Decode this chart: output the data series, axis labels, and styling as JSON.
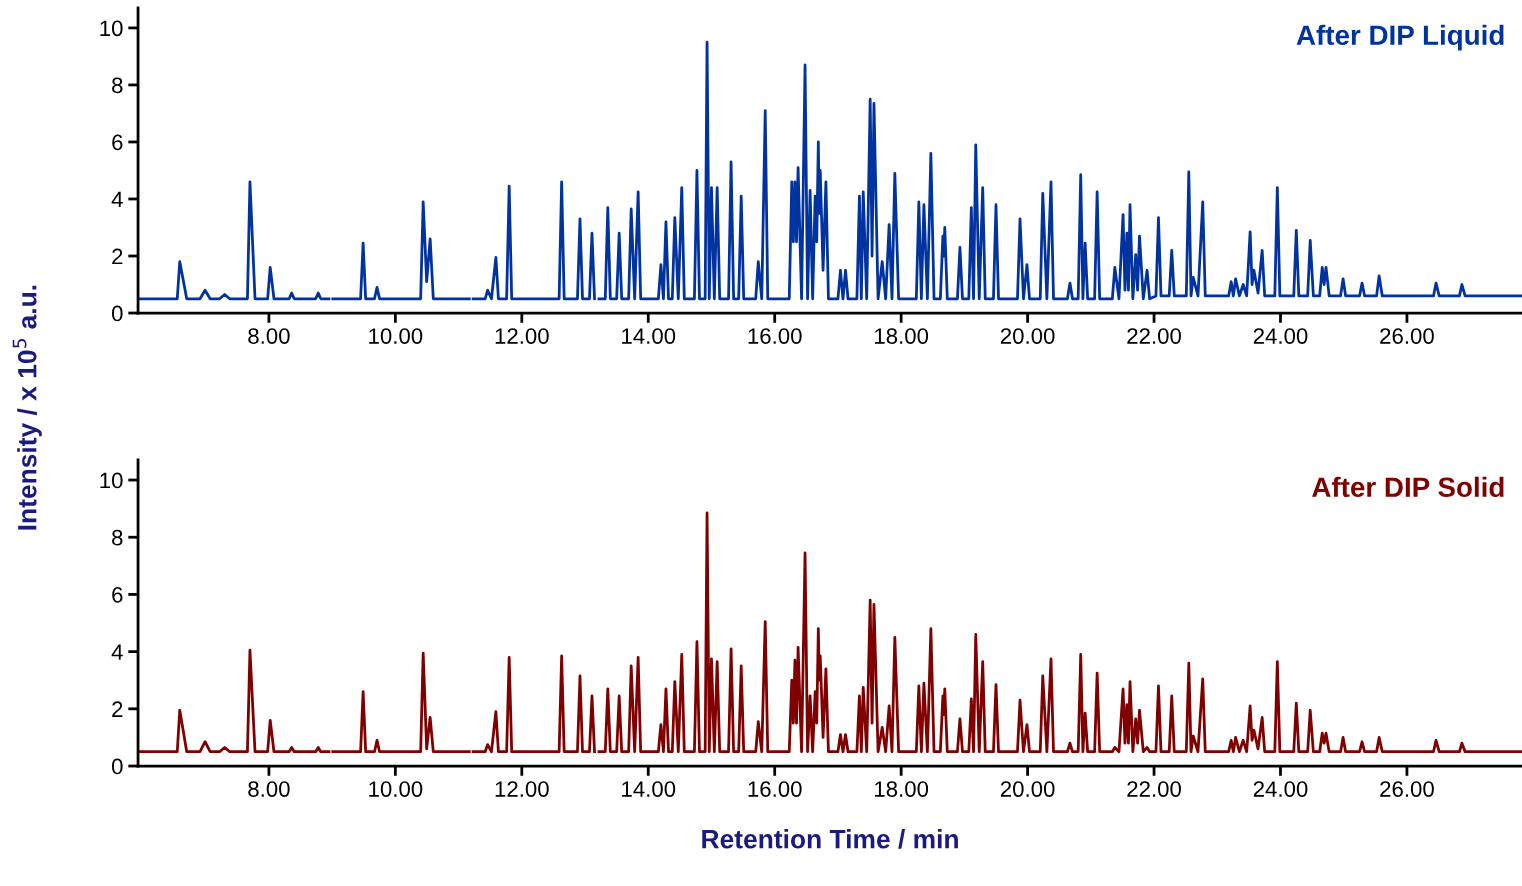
{
  "chart_data": [
    {
      "type": "line",
      "ylabel": "Intensity / x 10$^{5}$ a.u.",
      "legend": "top right",
      "line_style": "solid",
      "x": [
        5.93,
        6.55,
        6.59,
        6.7,
        6.91,
        6.99,
        7.07,
        7.22,
        7.3,
        7.38,
        7.66,
        7.7,
        7.78,
        7.98,
        8.02,
        8.08,
        8.32,
        8.36,
        8.4,
        8.74,
        8.78,
        8.82,
        8.95,
        8.98,
        9.01,
        9.45,
        9.49,
        9.53,
        9.67,
        9.71,
        9.75,
        10.4,
        10.44,
        10.495,
        10.55,
        10.6,
        11.17,
        11.2,
        11.23,
        11.42,
        11.46,
        11.52,
        11.59,
        11.63,
        11.76,
        11.8,
        11.84,
        12.59,
        12.63,
        12.67,
        12.88,
        12.92,
        12.96,
        13.07,
        13.11,
        13.15,
        13.19,
        13.22,
        13.32,
        13.36,
        13.4,
        13.5,
        13.54,
        13.58,
        13.69,
        13.73,
        13.785,
        13.84,
        13.88,
        14.16,
        14.2,
        14.24,
        14.28,
        14.32,
        14.38,
        14.42,
        14.475,
        14.53,
        14.57,
        14.73,
        14.77,
        14.81,
        14.9,
        14.93,
        14.965,
        15.0,
        15.045,
        15.09,
        15.13,
        15.27,
        15.31,
        15.35,
        15.43,
        15.47,
        15.51,
        15.7,
        15.74,
        15.795,
        15.85,
        15.89,
        16.23,
        16.27,
        16.295,
        16.32,
        16.345,
        16.37,
        16.425,
        16.48,
        16.52,
        16.56,
        16.6,
        16.64,
        16.665,
        16.69,
        16.705,
        16.72,
        16.765,
        16.81,
        16.85,
        17.0,
        17.04,
        17.08,
        17.12,
        17.16,
        17.3,
        17.34,
        17.37,
        17.4,
        17.455,
        17.51,
        17.54,
        17.57,
        17.635,
        17.7,
        17.755,
        17.81,
        17.855,
        17.9,
        17.96,
        18.24,
        18.28,
        18.32,
        18.36,
        18.415,
        18.47,
        18.52,
        18.62,
        18.66,
        18.675,
        18.69,
        18.73,
        18.89,
        18.93,
        18.97,
        19.07,
        19.11,
        19.145,
        19.18,
        19.235,
        19.29,
        19.33,
        19.46,
        19.5,
        19.54,
        19.84,
        19.88,
        19.935,
        19.99,
        20.03,
        20.2,
        20.24,
        20.305,
        20.37,
        20.41,
        20.63,
        20.67,
        20.71,
        20.8,
        20.84,
        20.875,
        20.91,
        20.95,
        21.06,
        21.1,
        21.14,
        21.34,
        21.38,
        21.445,
        21.51,
        21.54,
        21.57,
        21.595,
        21.62,
        21.665,
        21.71,
        21.74,
        21.77,
        21.83,
        21.89,
        21.93,
        22.03,
        22.07,
        22.11,
        22.24,
        22.28,
        22.32,
        22.51,
        22.55,
        22.585,
        22.62,
        22.695,
        22.77,
        22.81,
        23.18,
        23.22,
        23.255,
        23.29,
        23.35,
        23.41,
        23.465,
        23.52,
        23.55,
        23.58,
        23.645,
        23.71,
        23.75,
        23.91,
        23.95,
        23.99,
        24.21,
        24.25,
        24.29,
        24.43,
        24.47,
        24.52,
        24.62,
        24.66,
        24.69,
        24.72,
        24.77,
        24.95,
        24.99,
        25.03,
        25.25,
        25.29,
        25.33,
        25.52,
        25.56,
        25.61,
        26.42,
        26.46,
        26.51,
        26.83,
        26.87,
        26.92,
        27.82
      ],
      "series": [
        {
          "name": "After DIP Liquid",
          "color": "#0033a0",
          "values": [
            0.5,
            0.5,
            1.8,
            0.5,
            0.5,
            0.8,
            0.5,
            0.5,
            0.65,
            0.5,
            0.5,
            4.6,
            0.5,
            0.5,
            1.6,
            0.5,
            0.5,
            0.7,
            0.5,
            0.5,
            0.7,
            0.5,
            0.5,
            null,
            0.5,
            0.5,
            2.45,
            0.5,
            0.5,
            0.9,
            0.5,
            0.5,
            3.9,
            1.1,
            2.6,
            0.5,
            0.5,
            null,
            0.5,
            0.5,
            0.8,
            0.5,
            1.95,
            0.5,
            0.5,
            4.45,
            0.5,
            0.5,
            4.6,
            0.5,
            0.5,
            3.3,
            0.5,
            0.5,
            2.8,
            0.5,
            null,
            0.5,
            0.5,
            3.7,
            0.5,
            0.5,
            2.8,
            0.5,
            0.5,
            3.65,
            0.5,
            4.25,
            0.5,
            0.5,
            1.7,
            0.5,
            3.2,
            0.5,
            0.5,
            3.35,
            0.5,
            4.4,
            0.5,
            0.5,
            5.0,
            0.5,
            0.5,
            9.5,
            0.5,
            4.4,
            0.5,
            4.4,
            0.5,
            0.5,
            5.3,
            0.5,
            0.5,
            4.1,
            0.5,
            0.5,
            1.8,
            0.5,
            7.1,
            0.5,
            0.5,
            4.6,
            2.5,
            4.6,
            2.5,
            5.1,
            0.5,
            8.7,
            0.5,
            4.3,
            0.5,
            4.1,
            2.5,
            6.0,
            3.5,
            5.0,
            1.5,
            4.6,
            0.5,
            0.5,
            1.5,
            0.5,
            1.5,
            0.5,
            0.5,
            4.1,
            0.5,
            4.25,
            0.5,
            7.5,
            2.0,
            7.35,
            0.5,
            1.8,
            0.5,
            3.1,
            0.5,
            4.9,
            0.5,
            0.5,
            3.9,
            0.5,
            3.8,
            0.5,
            5.6,
            0.5,
            0.5,
            2.7,
            2.0,
            3.0,
            0.5,
            0.5,
            2.3,
            0.5,
            0.5,
            3.7,
            0.5,
            5.9,
            0.5,
            4.4,
            0.5,
            0.5,
            3.8,
            0.5,
            0.5,
            3.3,
            0.5,
            1.7,
            0.5,
            0.5,
            4.2,
            0.5,
            4.6,
            0.5,
            0.5,
            1.05,
            0.5,
            0.5,
            4.85,
            0.5,
            2.45,
            0.5,
            0.5,
            4.25,
            0.5,
            0.5,
            1.6,
            0.5,
            3.45,
            0.8,
            2.8,
            0.8,
            3.8,
            0.5,
            2.05,
            0.8,
            2.7,
            0.5,
            1.5,
            0.5,
            0.6,
            3.35,
            0.6,
            0.6,
            2.2,
            0.6,
            0.6,
            4.95,
            0.6,
            1.25,
            0.6,
            3.9,
            0.6,
            0.6,
            1.1,
            0.6,
            1.2,
            0.6,
            1.0,
            0.6,
            2.85,
            1.0,
            1.5,
            0.7,
            2.2,
            0.6,
            0.6,
            4.4,
            0.6,
            0.6,
            2.9,
            0.6,
            0.6,
            2.55,
            0.6,
            0.6,
            1.6,
            1.0,
            1.6,
            0.6,
            0.6,
            1.2,
            0.6,
            0.6,
            1.05,
            0.6,
            0.6,
            1.3,
            0.6,
            0.6,
            1.05,
            0.6,
            0.6,
            1.0,
            0.6,
            0.6
          ]
        }
      ],
      "xlim": [
        5.93,
        27.82
      ],
      "ylim": [
        0,
        10.7
      ],
      "xticks": [
        {
          "value": 8,
          "label": "8.00"
        },
        {
          "value": 10,
          "label": "10.00"
        },
        {
          "value": 12,
          "label": "12.00"
        },
        {
          "value": 14,
          "label": "14.00"
        },
        {
          "value": 16,
          "label": "16.00"
        },
        {
          "value": 18,
          "label": "18.00"
        },
        {
          "value": 20,
          "label": "20.00"
        },
        {
          "value": 22,
          "label": "22.00"
        },
        {
          "value": 24,
          "label": "24.00"
        },
        {
          "value": 26,
          "label": "26.00"
        }
      ],
      "yticks": [
        0,
        2,
        4,
        6,
        8,
        10
      ]
    },
    {
      "type": "line",
      "xlabel": "Retention Time / min",
      "legend": "top right",
      "line_style": "solid",
      "x": [
        5.93,
        6.55,
        6.59,
        6.7,
        6.91,
        6.99,
        7.07,
        7.22,
        7.3,
        7.38,
        7.66,
        7.7,
        7.78,
        7.98,
        8.02,
        8.08,
        8.32,
        8.36,
        8.4,
        8.74,
        8.78,
        8.82,
        8.95,
        8.98,
        9.01,
        9.45,
        9.49,
        9.53,
        9.67,
        9.71,
        9.75,
        10.4,
        10.44,
        10.495,
        10.55,
        10.6,
        11.17,
        11.2,
        11.23,
        11.42,
        11.46,
        11.52,
        11.59,
        11.63,
        11.76,
        11.8,
        11.84,
        12.59,
        12.63,
        12.67,
        12.88,
        12.92,
        12.96,
        13.07,
        13.11,
        13.15,
        13.19,
        13.22,
        13.32,
        13.36,
        13.4,
        13.5,
        13.54,
        13.58,
        13.69,
        13.73,
        13.785,
        13.84,
        13.88,
        14.16,
        14.2,
        14.24,
        14.28,
        14.32,
        14.38,
        14.42,
        14.475,
        14.53,
        14.57,
        14.73,
        14.77,
        14.81,
        14.9,
        14.93,
        14.965,
        15.0,
        15.045,
        15.09,
        15.13,
        15.27,
        15.31,
        15.35,
        15.43,
        15.47,
        15.51,
        15.7,
        15.74,
        15.795,
        15.85,
        15.89,
        16.23,
        16.27,
        16.295,
        16.32,
        16.345,
        16.37,
        16.425,
        16.48,
        16.52,
        16.56,
        16.6,
        16.64,
        16.665,
        16.69,
        16.705,
        16.72,
        16.765,
        16.81,
        16.85,
        17.0,
        17.04,
        17.08,
        17.12,
        17.16,
        17.3,
        17.34,
        17.37,
        17.4,
        17.455,
        17.51,
        17.54,
        17.57,
        17.635,
        17.7,
        17.755,
        17.81,
        17.855,
        17.9,
        17.96,
        18.24,
        18.28,
        18.32,
        18.36,
        18.415,
        18.47,
        18.52,
        18.62,
        18.66,
        18.675,
        18.69,
        18.73,
        18.89,
        18.93,
        18.97,
        19.07,
        19.11,
        19.145,
        19.18,
        19.235,
        19.29,
        19.33,
        19.46,
        19.5,
        19.54,
        19.84,
        19.88,
        19.935,
        19.99,
        20.03,
        20.2,
        20.24,
        20.305,
        20.37,
        20.41,
        20.63,
        20.67,
        20.71,
        20.8,
        20.84,
        20.875,
        20.91,
        20.95,
        21.06,
        21.1,
        21.14,
        21.34,
        21.38,
        21.445,
        21.51,
        21.54,
        21.57,
        21.595,
        21.62,
        21.665,
        21.71,
        21.74,
        21.77,
        21.83,
        21.89,
        21.93,
        22.03,
        22.07,
        22.11,
        22.24,
        22.28,
        22.32,
        22.51,
        22.55,
        22.585,
        22.62,
        22.695,
        22.77,
        22.81,
        23.18,
        23.22,
        23.255,
        23.29,
        23.35,
        23.41,
        23.465,
        23.52,
        23.55,
        23.58,
        23.645,
        23.71,
        23.75,
        23.91,
        23.95,
        23.99,
        24.21,
        24.25,
        24.29,
        24.43,
        24.47,
        24.52,
        24.62,
        24.66,
        24.69,
        24.72,
        24.77,
        24.95,
        24.99,
        25.03,
        25.25,
        25.29,
        25.33,
        25.52,
        25.56,
        25.61,
        26.42,
        26.46,
        26.51,
        26.83,
        26.87,
        26.92,
        27.82
      ],
      "series": [
        {
          "name": "After DIP Solid",
          "color": "#800000",
          "values": [
            0.5,
            0.5,
            1.95,
            0.5,
            0.5,
            0.85,
            0.5,
            0.5,
            0.65,
            0.5,
            0.5,
            4.05,
            0.5,
            0.5,
            1.6,
            0.5,
            0.5,
            0.65,
            0.5,
            0.5,
            0.65,
            0.5,
            0.5,
            null,
            0.5,
            0.5,
            2.6,
            0.5,
            0.5,
            0.9,
            0.5,
            0.5,
            3.95,
            0.6,
            1.7,
            0.5,
            0.5,
            null,
            0.5,
            0.5,
            0.75,
            0.5,
            1.9,
            0.5,
            0.5,
            3.8,
            0.5,
            0.5,
            3.85,
            0.5,
            0.5,
            3.15,
            0.5,
            0.5,
            2.45,
            0.5,
            null,
            0.5,
            0.5,
            2.7,
            0.5,
            0.5,
            2.45,
            0.5,
            0.5,
            3.5,
            0.5,
            3.8,
            0.5,
            0.5,
            1.45,
            0.5,
            2.7,
            0.5,
            0.5,
            2.95,
            0.5,
            3.9,
            0.5,
            0.5,
            4.35,
            0.5,
            0.5,
            8.85,
            0.5,
            3.75,
            0.5,
            3.65,
            0.5,
            0.5,
            4.1,
            0.5,
            0.5,
            3.5,
            0.5,
            0.5,
            1.55,
            0.5,
            5.05,
            0.5,
            0.5,
            3.0,
            1.5,
            3.7,
            1.5,
            4.15,
            0.5,
            7.45,
            0.5,
            2.45,
            0.5,
            2.6,
            1.5,
            4.8,
            3.0,
            3.85,
            1.0,
            3.4,
            0.5,
            0.5,
            1.1,
            0.5,
            1.1,
            0.5,
            0.5,
            2.45,
            0.5,
            2.75,
            0.5,
            5.8,
            1.5,
            5.65,
            0.5,
            1.35,
            0.5,
            2.1,
            0.5,
            4.5,
            0.5,
            0.5,
            2.8,
            0.5,
            2.9,
            0.5,
            4.8,
            0.5,
            0.5,
            2.45,
            1.8,
            2.7,
            0.5,
            0.5,
            1.65,
            0.5,
            0.5,
            2.35,
            0.5,
            4.6,
            0.5,
            3.65,
            0.5,
            0.5,
            2.85,
            0.5,
            0.5,
            2.3,
            0.5,
            1.45,
            0.5,
            0.5,
            3.15,
            0.5,
            3.75,
            0.5,
            0.5,
            0.8,
            0.5,
            0.5,
            3.9,
            0.5,
            1.85,
            0.5,
            0.5,
            3.25,
            0.5,
            0.5,
            0.65,
            0.5,
            2.7,
            0.8,
            2.15,
            0.8,
            2.95,
            0.5,
            1.65,
            0.8,
            1.95,
            0.5,
            0.65,
            0.5,
            0.5,
            2.8,
            0.5,
            0.5,
            2.45,
            0.5,
            0.5,
            3.6,
            0.5,
            1.05,
            0.5,
            3.05,
            0.5,
            0.5,
            0.9,
            0.5,
            1.0,
            0.5,
            0.9,
            0.5,
            2.1,
            0.9,
            1.25,
            0.6,
            1.7,
            0.5,
            0.5,
            3.65,
            0.5,
            0.5,
            2.2,
            0.5,
            0.5,
            1.95,
            0.5,
            0.5,
            1.15,
            0.8,
            1.15,
            0.5,
            0.5,
            1.0,
            0.5,
            0.5,
            0.85,
            0.5,
            0.5,
            1.0,
            0.5,
            0.5,
            0.9,
            0.5,
            0.5,
            0.8,
            0.5,
            0.5
          ]
        }
      ],
      "xlim": [
        5.93,
        27.82
      ],
      "ylim": [
        0,
        10.7
      ],
      "xticks": [
        {
          "value": 8,
          "label": "8.00"
        },
        {
          "value": 10,
          "label": "10.00"
        },
        {
          "value": 12,
          "label": "12.00"
        },
        {
          "value": 14,
          "label": "14.00"
        },
        {
          "value": 16,
          "label": "16.00"
        },
        {
          "value": 18,
          "label": "18.00"
        },
        {
          "value": 20,
          "label": "20.00"
        },
        {
          "value": 22,
          "label": "22.00"
        },
        {
          "value": 24,
          "label": "24.00"
        },
        {
          "value": 26,
          "label": "26.00"
        }
      ],
      "yticks": [
        0,
        2,
        4,
        6,
        8,
        10
      ]
    }
  ]
}
